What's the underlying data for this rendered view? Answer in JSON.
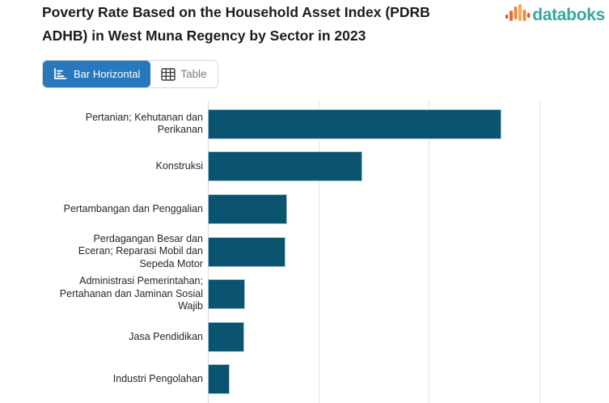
{
  "header": {
    "title_lines": [
      "Poverty Rate Based on the Household Asset Index (PDRB",
      "ADHB) in West Muna Regency by Sector in 2023"
    ]
  },
  "brand": {
    "name": "databoks",
    "logo_icon": "waveform-bars-icon",
    "text_color": "#35a7a1",
    "icon_colors": [
      "#d94f2e",
      "#e8663a",
      "#ef8a3e",
      "#f7ab55"
    ]
  },
  "view_toggle": {
    "options": [
      {
        "label": "Bar Horizontal",
        "icon": "bar-horizontal-chart-icon",
        "active": true
      },
      {
        "label": "Table",
        "icon": "table-grid-icon",
        "active": false
      }
    ],
    "active_bg": "#2878bd"
  },
  "chart_data": {
    "type": "bar",
    "orientation": "horizontal",
    "title": "Poverty Rate Based on the Household Asset Index (PDRB ADHB) in West Muna Regency by Sector in 2023",
    "categories": [
      "Pertanian; Kehutanan dan Perikanan",
      "Konstruksi",
      "Pertambangan dan Penggalian",
      "Perdagangan Besar dan Eceran; Reparasi Mobil dan Sepeda Motor",
      "Administrasi Pemerintahan; Pertahanan dan Jaminan Sosial Wajib",
      "Jasa Pendidikan",
      "Industri Pengolahan"
    ],
    "values": [
      26.6,
      14.0,
      7.2,
      7.0,
      3.4,
      3.3,
      2.0
    ],
    "xlabel": "",
    "ylabel": "",
    "xlim": [
      0,
      36.3
    ],
    "gridlines_x": [
      0,
      10,
      20,
      30
    ],
    "tick_labels_visible": false,
    "values_note": "x-axis tick labels are cropped out of view; values estimated from evenly spaced unlabeled gridlines treating one gridline interval as 10",
    "grid": true,
    "legend": "none",
    "bar_color": "#0a5470",
    "bar_border_color": "#a9c7d6",
    "grid_color": "#e3e3e3"
  }
}
